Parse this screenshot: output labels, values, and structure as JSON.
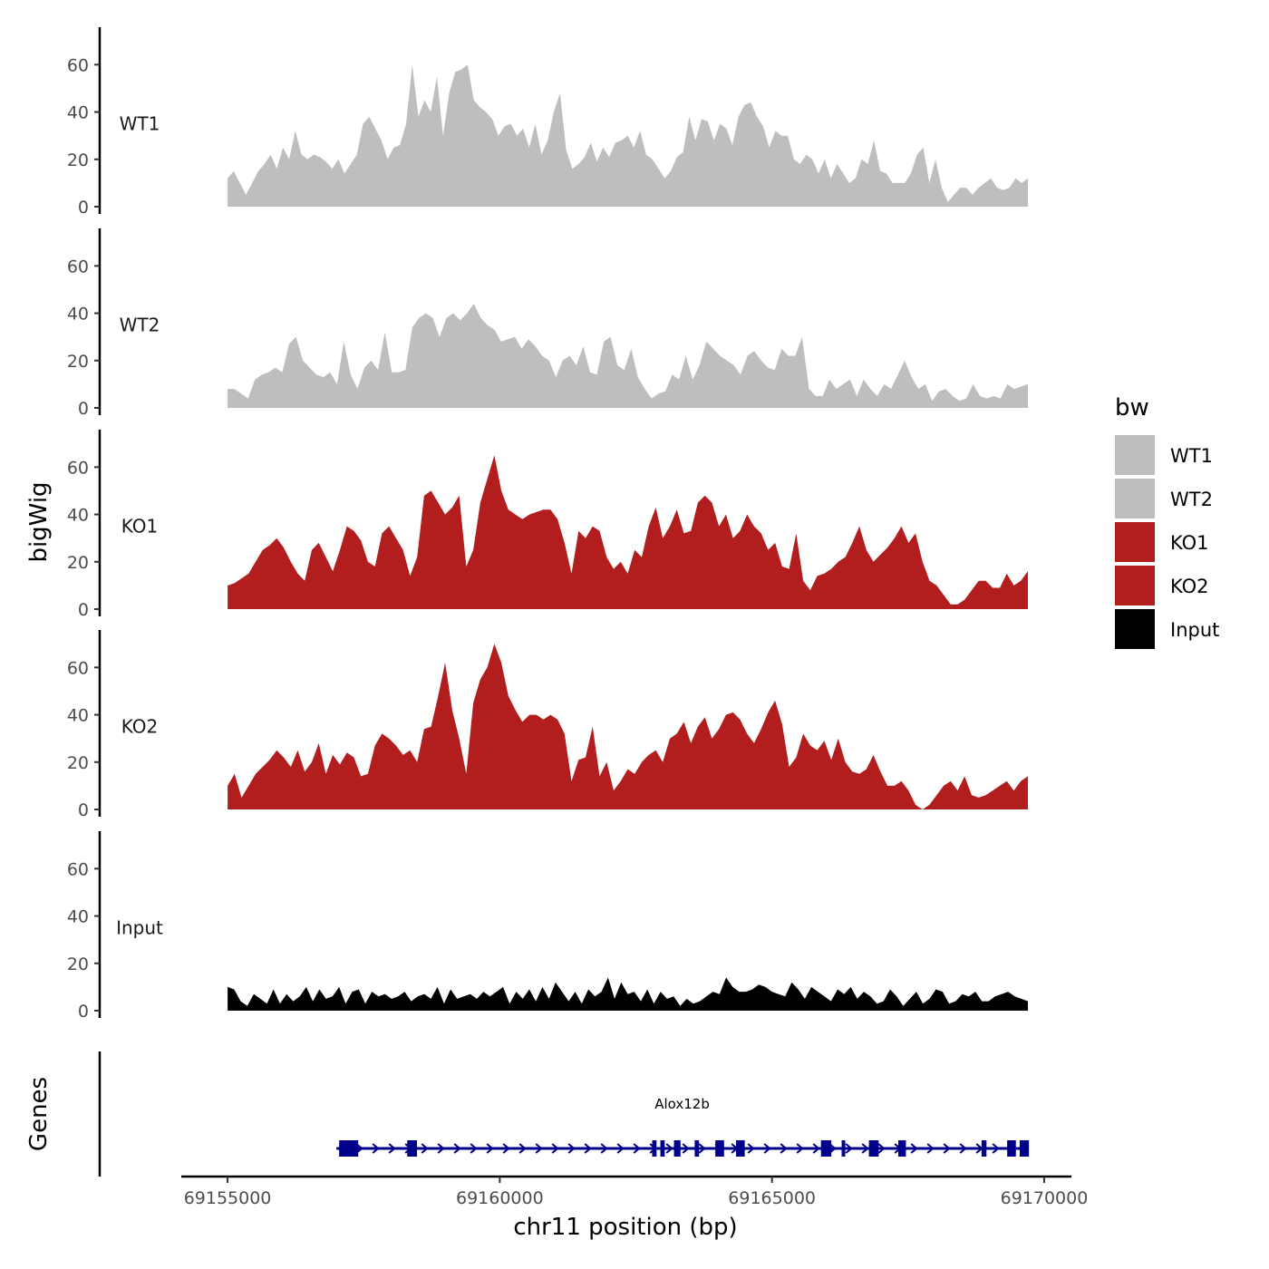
{
  "chart_data": {
    "type": "area",
    "ylabel": "bigWig",
    "xlabel": "chr11 position (bp)",
    "genes_label": "Genes",
    "x_range": [
      69155000,
      69169700
    ],
    "xlim": [
      69154150,
      69170500
    ],
    "ylim": [
      0,
      72
    ],
    "y_ticks": [
      0,
      20,
      40,
      60
    ],
    "y_tick_labels": [
      "0",
      "20",
      "40",
      "60"
    ],
    "x_ticks": [
      69155000,
      69160000,
      69165000,
      69170000
    ],
    "x_tick_labels": [
      "69155000",
      "69160000",
      "69165000",
      "69170000"
    ],
    "legend": {
      "title": "bw",
      "entries": [
        {
          "label": "WT1",
          "color": "#bebebe"
        },
        {
          "label": "WT2",
          "color": "#bebebe"
        },
        {
          "label": "KO1",
          "color": "#b21e1e"
        },
        {
          "label": "KO2",
          "color": "#b21e1e"
        },
        {
          "label": "Input",
          "color": "#000000"
        }
      ]
    },
    "series": [
      {
        "name": "WT1",
        "color": "#bebebe",
        "values": [
          12,
          15,
          10,
          5,
          10,
          15,
          18,
          22,
          16,
          25,
          20,
          32,
          22,
          20,
          22,
          21,
          19,
          16,
          20,
          14,
          18,
          22,
          35,
          38,
          33,
          28,
          20,
          25,
          26,
          35,
          60,
          38,
          45,
          40,
          55,
          30,
          48,
          57,
          58,
          60,
          45,
          42,
          40,
          37,
          30,
          34,
          35,
          30,
          33,
          25,
          35,
          22,
          28,
          40,
          48,
          24,
          16,
          18,
          21,
          27,
          19,
          25,
          21,
          27,
          28,
          30,
          25,
          32,
          22,
          20,
          16,
          12,
          15,
          21,
          23,
          38,
          28,
          37,
          36,
          28,
          35,
          33,
          26,
          38,
          43,
          44,
          38,
          34,
          25,
          32,
          30,
          30,
          20,
          18,
          22,
          20,
          14,
          20,
          12,
          18,
          14,
          10,
          12,
          20,
          18,
          28,
          15,
          14,
          10,
          10,
          10,
          14,
          22,
          25,
          10,
          20,
          8,
          2,
          5,
          8,
          8,
          5,
          8,
          10,
          12,
          8,
          7,
          8,
          12,
          10,
          12
        ]
      },
      {
        "name": "WT2",
        "color": "#bebebe",
        "values": [
          8,
          8,
          6,
          4,
          12,
          14,
          15,
          17,
          15,
          27,
          30,
          20,
          17,
          14,
          13,
          15,
          10,
          28,
          14,
          8,
          17,
          20,
          16,
          32,
          15,
          15,
          16,
          34,
          38,
          40,
          38,
          30,
          38,
          40,
          37,
          40,
          44,
          38,
          35,
          33,
          28,
          29,
          30,
          25,
          29,
          26,
          22,
          20,
          13,
          20,
          22,
          18,
          26,
          15,
          14,
          28,
          30,
          18,
          16,
          25,
          13,
          8,
          4,
          6,
          7,
          14,
          12,
          22,
          12,
          18,
          28,
          25,
          22,
          20,
          18,
          14,
          22,
          24,
          20,
          17,
          16,
          25,
          22,
          22,
          30,
          8,
          5,
          5,
          12,
          8,
          10,
          12,
          5,
          12,
          8,
          5,
          10,
          8,
          14,
          20,
          13,
          8,
          10,
          3,
          7,
          8,
          5,
          3,
          4,
          10,
          5,
          4,
          5,
          4,
          10,
          8,
          9,
          10
        ]
      },
      {
        "name": "KO1",
        "color": "#b21e1e",
        "values": [
          10,
          11,
          13,
          15,
          20,
          25,
          27,
          30,
          26,
          20,
          15,
          12,
          25,
          28,
          22,
          16,
          25,
          35,
          33,
          29,
          20,
          18,
          32,
          35,
          30,
          25,
          14,
          22,
          48,
          50,
          45,
          40,
          43,
          48,
          18,
          25,
          45,
          55,
          65,
          50,
          42,
          40,
          38,
          40,
          41,
          42,
          42,
          38,
          28,
          15,
          33,
          30,
          35,
          33,
          22,
          17,
          20,
          15,
          25,
          22,
          35,
          43,
          30,
          35,
          42,
          32,
          33,
          45,
          48,
          45,
          35,
          40,
          30,
          33,
          40,
          35,
          32,
          25,
          28,
          18,
          17,
          32,
          12,
          8,
          14,
          15,
          17,
          20,
          22,
          28,
          35,
          25,
          20,
          23,
          26,
          30,
          35,
          28,
          32,
          20,
          12,
          10,
          6,
          2,
          2,
          4,
          8,
          12,
          12,
          9,
          9,
          15,
          10,
          12,
          16
        ]
      },
      {
        "name": "KO2",
        "color": "#b21e1e",
        "values": [
          10,
          15,
          5,
          10,
          15,
          18,
          21,
          25,
          22,
          18,
          25,
          16,
          20,
          28,
          15,
          23,
          19,
          24,
          22,
          14,
          15,
          27,
          32,
          30,
          27,
          23,
          25,
          20,
          34,
          35,
          48,
          62,
          42,
          30,
          15,
          45,
          55,
          60,
          70,
          62,
          48,
          42,
          37,
          40,
          40,
          38,
          40,
          38,
          32,
          12,
          21,
          22,
          35,
          14,
          20,
          8,
          12,
          17,
          15,
          20,
          23,
          25,
          20,
          30,
          32,
          37,
          28,
          35,
          39,
          30,
          34,
          40,
          41,
          38,
          32,
          28,
          34,
          41,
          46,
          36,
          18,
          22,
          32,
          27,
          25,
          29,
          21,
          30,
          20,
          16,
          15,
          17,
          23,
          16,
          10,
          10,
          12,
          8,
          2,
          0,
          2,
          6,
          10,
          12,
          8,
          14,
          6,
          5,
          6,
          8,
          10,
          12,
          8,
          12,
          14
        ]
      },
      {
        "name": "Input",
        "color": "#000000",
        "values": [
          10,
          9,
          4,
          2,
          7,
          5,
          3,
          9,
          3,
          7,
          4,
          6,
          10,
          4,
          9,
          5,
          6,
          10,
          3,
          8,
          9,
          3,
          8,
          6,
          7,
          5,
          6,
          8,
          4,
          6,
          7,
          5,
          10,
          3,
          9,
          5,
          6,
          7,
          5,
          8,
          6,
          8,
          10,
          3,
          8,
          5,
          9,
          4,
          10,
          5,
          12,
          8,
          4,
          8,
          3,
          9,
          6,
          8,
          14,
          5,
          12,
          7,
          8,
          4,
          9,
          3,
          8,
          5,
          6,
          2,
          5,
          3,
          4,
          6,
          8,
          7,
          14,
          10,
          8,
          8,
          9,
          11,
          10,
          8,
          7,
          6,
          12,
          9,
          5,
          10,
          8,
          6,
          4,
          9,
          7,
          10,
          5,
          8,
          6,
          3,
          4,
          9,
          6,
          2,
          5,
          8,
          3,
          5,
          9,
          8,
          3,
          4,
          7,
          6,
          8,
          4,
          4,
          6,
          7,
          8,
          6,
          5,
          4
        ]
      }
    ],
    "genes": [
      {
        "name": "Alox12b",
        "start": 69157000,
        "end": 69169700,
        "strand": "+",
        "exons": [
          [
            69157050,
            69157400
          ],
          [
            69158300,
            69158480
          ],
          [
            69162800,
            69162880
          ],
          [
            69162950,
            69163030
          ],
          [
            69163200,
            69163320
          ],
          [
            69163580,
            69163660
          ],
          [
            69163960,
            69164120
          ],
          [
            69164340,
            69164500
          ],
          [
            69165900,
            69166090
          ],
          [
            69166280,
            69166340
          ],
          [
            69166780,
            69166960
          ],
          [
            69167320,
            69167460
          ],
          [
            69168850,
            69168940
          ],
          [
            69169320,
            69169480
          ],
          [
            69169550,
            69169720
          ]
        ]
      }
    ]
  }
}
